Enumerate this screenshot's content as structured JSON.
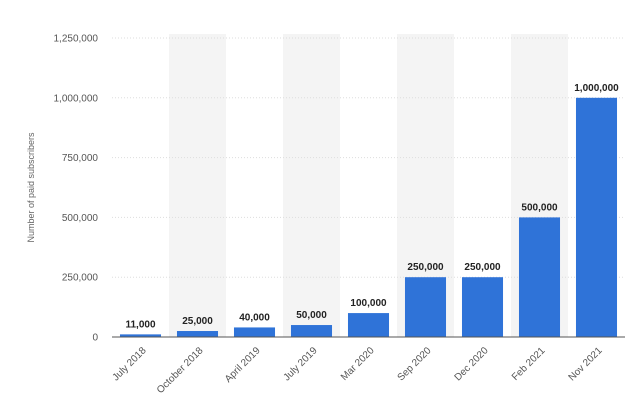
{
  "chart_data": {
    "type": "bar",
    "title": "",
    "xlabel": "",
    "ylabel": "Number of paid subscribers",
    "categories": [
      "July 2018",
      "October 2018",
      "April 2019",
      "July 2019",
      "Mar 2020",
      "Sep 2020",
      "Dec 2020",
      "Feb 2021",
      "Nov 2021"
    ],
    "values": [
      11000,
      25000,
      40000,
      50000,
      100000,
      250000,
      250000,
      500000,
      1000000
    ],
    "value_labels": [
      "11,000",
      "25,000",
      "40,000",
      "50,000",
      "100,000",
      "250,000",
      "250,000",
      "500,000",
      "1,000,000"
    ],
    "ylim": [
      0,
      1250000
    ],
    "yticks": [
      0,
      250000,
      500000,
      750000,
      1000000,
      1250000
    ],
    "ytick_labels": [
      "0",
      "250,000",
      "500,000",
      "750,000",
      "1,000,000",
      "1,250,000"
    ],
    "grid": true,
    "legend": "none",
    "colors": {
      "bar": "#2f73d8",
      "band": "#f4f4f4",
      "grid": "#dddddd",
      "axis": "#555555"
    }
  }
}
